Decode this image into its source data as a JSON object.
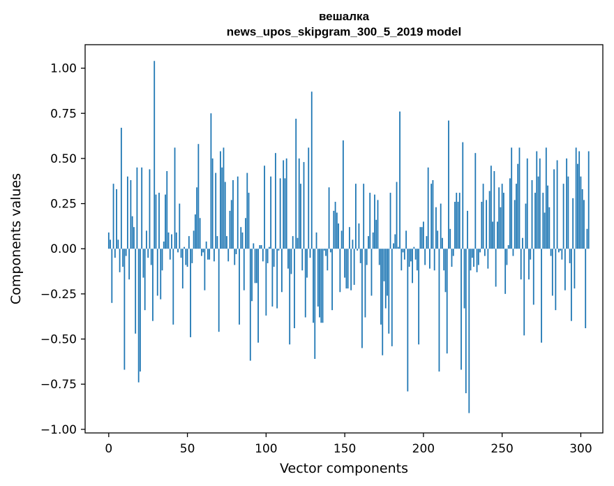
{
  "chart_data": {
    "type": "bar",
    "title": "вешалка",
    "subtitle": "news_upos_skipgram_300_5_2019 model",
    "xlabel": "Vector components",
    "ylabel": "Components values",
    "xlim": [
      -15,
      314
    ],
    "ylim": [
      -1.02,
      1.13
    ],
    "xticks": [
      0,
      50,
      100,
      150,
      200,
      250,
      300
    ],
    "xtick_labels": [
      "0",
      "50",
      "100",
      "150",
      "200",
      "250",
      "300"
    ],
    "yticks": [
      1.0,
      0.75,
      0.5,
      0.25,
      0.0,
      -0.25,
      -0.5,
      -0.75,
      -1.0
    ],
    "ytick_labels": [
      "1.00",
      "0.75",
      "0.50",
      "0.25",
      "0.00",
      "−0.25",
      "−0.50",
      "−0.75",
      "−1.00"
    ],
    "bar_color": "#1f77b4",
    "grid": false,
    "series": [
      {
        "values": [
          0.09,
          0.05,
          -0.3,
          0.36,
          -0.05,
          0.33,
          0.05,
          -0.13,
          0.67,
          -0.1,
          -0.67,
          -0.04,
          0.4,
          -0.17,
          0.38,
          0.18,
          0.12,
          -0.47,
          0.45,
          -0.74,
          -0.68,
          0.45,
          -0.16,
          -0.34,
          0.1,
          -0.05,
          0.44,
          -0.09,
          -0.4,
          1.04,
          0.3,
          -0.26,
          0.31,
          -0.28,
          -0.12,
          0.04,
          0.3,
          0.43,
          0.09,
          -0.06,
          0.08,
          -0.42,
          0.56,
          0.09,
          -0.02,
          0.25,
          -0.05,
          -0.22,
          0.01,
          -0.09,
          -0.1,
          0.07,
          -0.49,
          -0.08,
          0.1,
          0.19,
          0.34,
          0.58,
          0.17,
          -0.04,
          -0.02,
          -0.23,
          0.04,
          -0.06,
          -0.06,
          0.75,
          0.5,
          -0.07,
          0.42,
          0.07,
          -0.46,
          0.54,
          0.45,
          0.56,
          0.37,
          0.07,
          -0.07,
          0.21,
          0.27,
          0.38,
          -0.09,
          -0.03,
          0.4,
          -0.42,
          0.12,
          0.09,
          -0.23,
          0.17,
          0.42,
          0.31,
          -0.62,
          -0.29,
          0.03,
          -0.19,
          -0.19,
          -0.52,
          0.02,
          0.02,
          -0.07,
          0.46,
          -0.37,
          -0.08,
          0.01,
          0.4,
          -0.32,
          -0.1,
          0.53,
          -0.33,
          -0.01,
          0.39,
          -0.24,
          0.49,
          0.39,
          0.5,
          -0.11,
          -0.53,
          -0.14,
          0.07,
          -0.44,
          0.72,
          0.06,
          0.5,
          0.36,
          -0.12,
          0.48,
          -0.38,
          -0.16,
          0.56,
          -0.05,
          0.87,
          -0.41,
          -0.61,
          0.09,
          -0.32,
          -0.38,
          -0.41,
          -0.41,
          -0.01,
          -0.04,
          -0.12,
          0.34,
          -0.02,
          -0.34,
          0.21,
          0.26,
          0.2,
          0.14,
          -0.24,
          0.1,
          0.6,
          -0.16,
          -0.22,
          -0.22,
          0.12,
          -0.23,
          0.05,
          -0.2,
          0.36,
          -0.01,
          0.14,
          -0.08,
          -0.55,
          0.36,
          -0.38,
          -0.09,
          0.07,
          0.31,
          -0.26,
          0.09,
          0.3,
          0.16,
          0.27,
          -0.09,
          -0.42,
          -0.59,
          -0.18,
          -0.33,
          -0.26,
          -0.47,
          0.31,
          -0.54,
          0.03,
          0.08,
          0.37,
          0.01,
          0.76,
          -0.12,
          -0.02,
          -0.06,
          0.1,
          -0.79,
          -0.1,
          -0.07,
          -0.19,
          0.01,
          -0.06,
          -0.12,
          -0.53,
          0.12,
          0.12,
          0.15,
          -0.09,
          0.07,
          0.45,
          -0.11,
          0.36,
          0.38,
          -0.12,
          0.23,
          0.1,
          -0.68,
          0.25,
          0.06,
          -0.12,
          -0.24,
          -0.58,
          0.71,
          0.11,
          -0.1,
          -0.04,
          0.26,
          0.31,
          0.26,
          0.31,
          -0.67,
          0.59,
          -0.33,
          -0.8,
          0.21,
          -0.91,
          -0.12,
          -0.05,
          -0.1,
          0.53,
          -0.13,
          -0.09,
          -0.02,
          0.26,
          0.36,
          -0.04,
          0.27,
          -0.11,
          0.32,
          0.46,
          0.15,
          0.43,
          -0.21,
          0.15,
          0.34,
          0.23,
          0.36,
          0.31,
          -0.25,
          -0.09,
          0.02,
          0.39,
          0.56,
          -0.04,
          0.27,
          0.36,
          0.47,
          0.56,
          -0.17,
          0.06,
          -0.48,
          0.25,
          0.5,
          -0.17,
          -0.06,
          0.38,
          -0.31,
          0.31,
          0.54,
          0.4,
          0.5,
          -0.52,
          0.31,
          0.2,
          0.56,
          0.35,
          0.23,
          -0.04,
          -0.26,
          0.44,
          -0.34,
          0.49,
          -0.02,
          -0.01,
          -0.06,
          0.36,
          -0.23,
          0.5,
          0.4,
          -0.08,
          -0.4,
          0.28,
          -0.22,
          0.56,
          0.47,
          0.54,
          0.4,
          0.33,
          0.27,
          -0.44,
          0.11,
          0.54
        ]
      }
    ]
  }
}
